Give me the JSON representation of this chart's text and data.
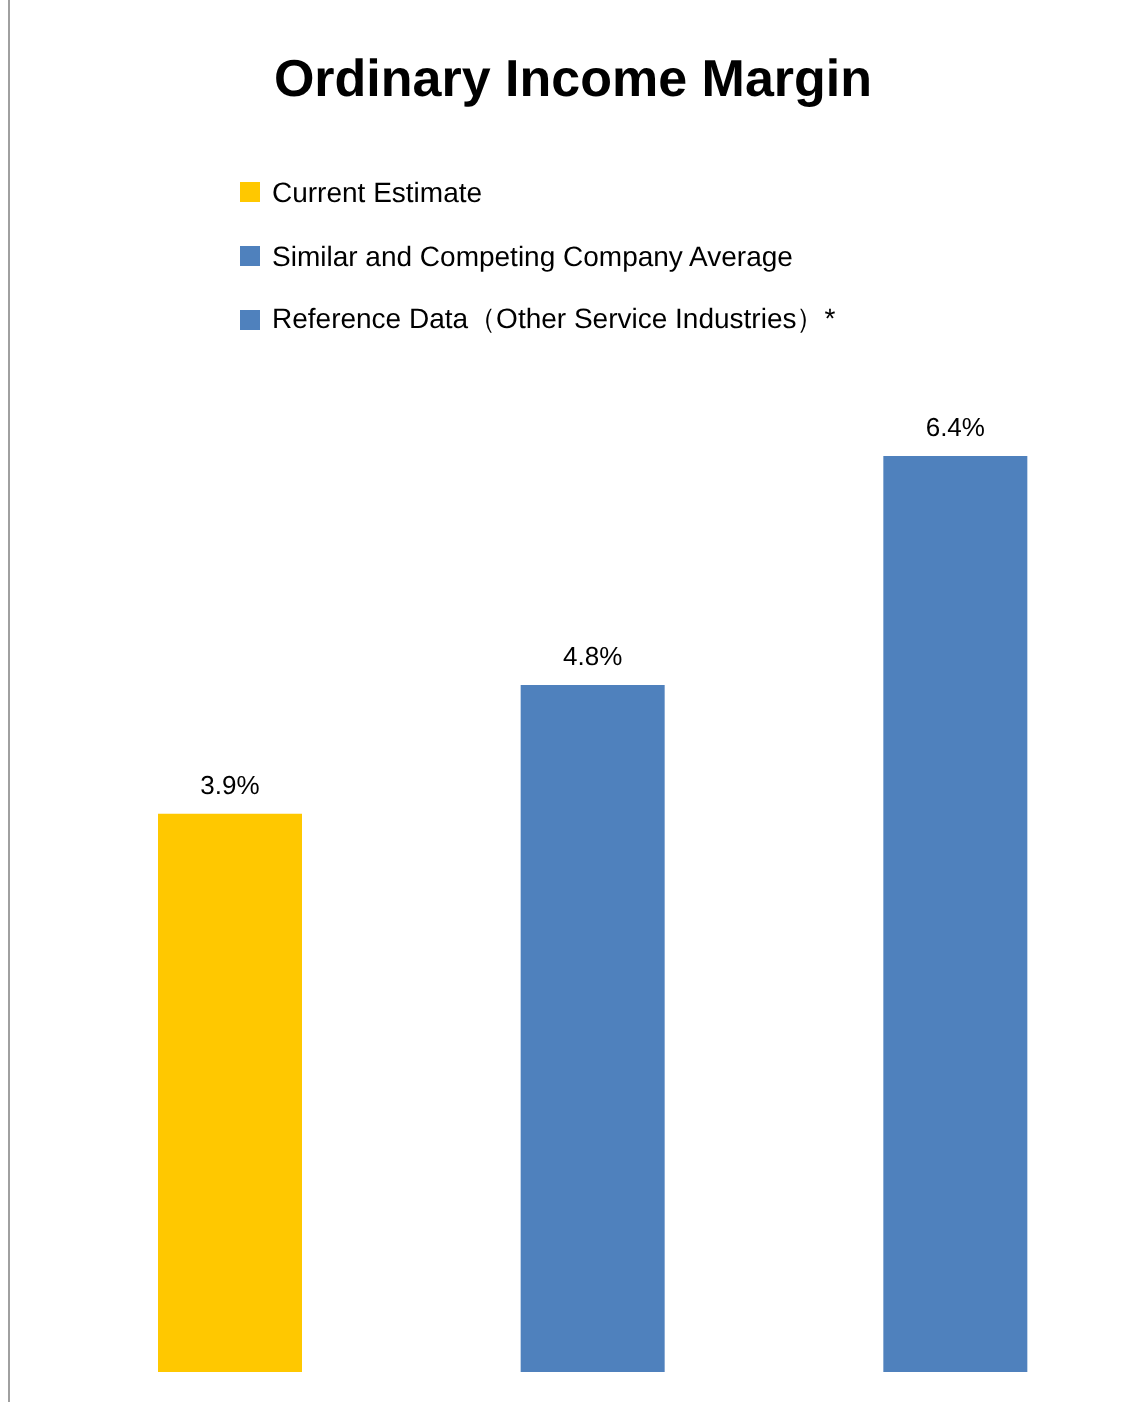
{
  "chart_data": {
    "type": "bar",
    "title": "Ordinary Income Margin",
    "categories": [
      null,
      null,
      null
    ],
    "series": [
      {
        "name": "Current Estimate",
        "color": "#ffc800",
        "values": [
          3.9,
          null,
          null
        ],
        "value_labels": [
          "3.9%",
          null,
          null
        ]
      },
      {
        "name": "Similar and Competing Company Average",
        "color": "#4f81bd",
        "values": [
          null,
          4.8,
          null
        ],
        "value_labels": [
          null,
          "4.8%",
          null
        ]
      },
      {
        "name": "Reference Data（Other Service Industries）*",
        "color": "#4f81bd",
        "values": [
          null,
          null,
          6.4
        ],
        "value_labels": [
          null,
          null,
          "6.4%"
        ]
      }
    ],
    "stacked": true,
    "legend": "top left",
    "grid": false
  }
}
